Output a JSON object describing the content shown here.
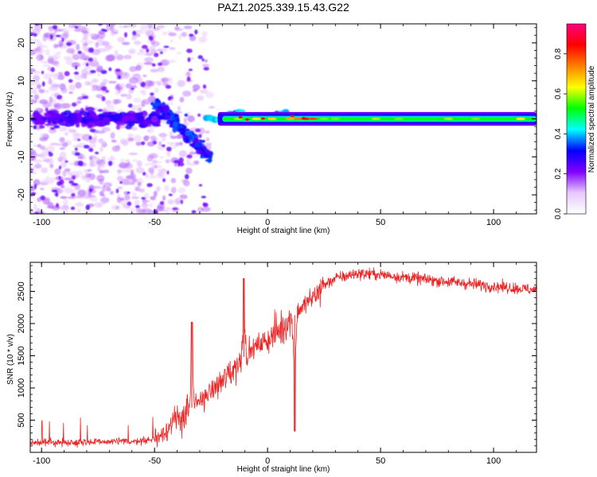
{
  "chart_data": [
    {
      "type": "heatmap",
      "title": "PAZ1.2025.339.15.43.G22",
      "xlabel": "Height of straight line (km)",
      "ylabel": "Frequency (Hz)",
      "xlim": [
        -105,
        119
      ],
      "ylim": [
        -25,
        25
      ],
      "x_ticks": [
        -100,
        -50,
        0,
        50,
        100
      ],
      "x_tick_labels": [
        "-100",
        "-50",
        "0",
        "50",
        "100"
      ],
      "y_ticks": [
        -20,
        -10,
        0,
        10,
        20
      ],
      "y_tick_labels": [
        "-20",
        "-10",
        "0",
        "10",
        "20"
      ],
      "colorbar": {
        "label": "Normalized spectral amplitude",
        "range": [
          0,
          0.95
        ],
        "ticks": [
          0.0,
          0.2,
          0.4,
          0.6,
          0.8
        ],
        "tick_labels": [
          "0.0",
          "0.2",
          "0.4",
          "0.6",
          "0.8"
        ],
        "colormap": [
          "#ffffff",
          "#e8c8ff",
          "#8000ff",
          "#0000ff",
          "#00ffff",
          "#00ff00",
          "#ffff00",
          "#ff8000",
          "#ff0000",
          "#ff0080"
        ]
      },
      "features": {
        "noise_region_km": [
          -105,
          -25
        ],
        "converging_track_km": [
          -50,
          -25
        ],
        "converging_track_freq_hz": [
          4,
          -10
        ],
        "stable_tone_start_km": -25,
        "stable_tone_freq_hz": 0
      }
    },
    {
      "type": "line",
      "xlabel": "Height of straight line (km)",
      "ylabel": "SNR (10 * v/v)",
      "xlim": [
        -105,
        119
      ],
      "ylim": [
        0,
        2950
      ],
      "x_ticks": [
        -100,
        -50,
        0,
        50,
        100
      ],
      "x_tick_labels": [
        "-100",
        "-50",
        "0",
        "50",
        "100"
      ],
      "y_ticks": [
        500,
        1000,
        1500,
        2000,
        2500
      ],
      "y_tick_labels": [
        "500",
        "1000",
        "1500",
        "2000",
        "2500"
      ],
      "series": [
        {
          "name": "SNR",
          "color": "#ee2222",
          "x": [
            -105,
            -80,
            -60,
            -50,
            -45,
            -40,
            -35,
            -30,
            -25,
            -20,
            -15,
            -10,
            -5,
            0,
            5,
            10,
            15,
            20,
            25,
            30,
            40,
            50,
            60,
            80,
            100,
            119
          ],
          "y": [
            150,
            160,
            170,
            200,
            350,
            500,
            650,
            800,
            950,
            1100,
            1300,
            1500,
            1650,
            1750,
            1900,
            2050,
            2250,
            2400,
            2600,
            2700,
            2780,
            2760,
            2720,
            2650,
            2580,
            2520
          ],
          "spikes": [
            {
              "x": -33.5,
              "y": 2020
            },
            {
              "x": -10.5,
              "y": 2700
            },
            {
              "x": 12,
              "y": 330
            }
          ]
        }
      ]
    }
  ]
}
